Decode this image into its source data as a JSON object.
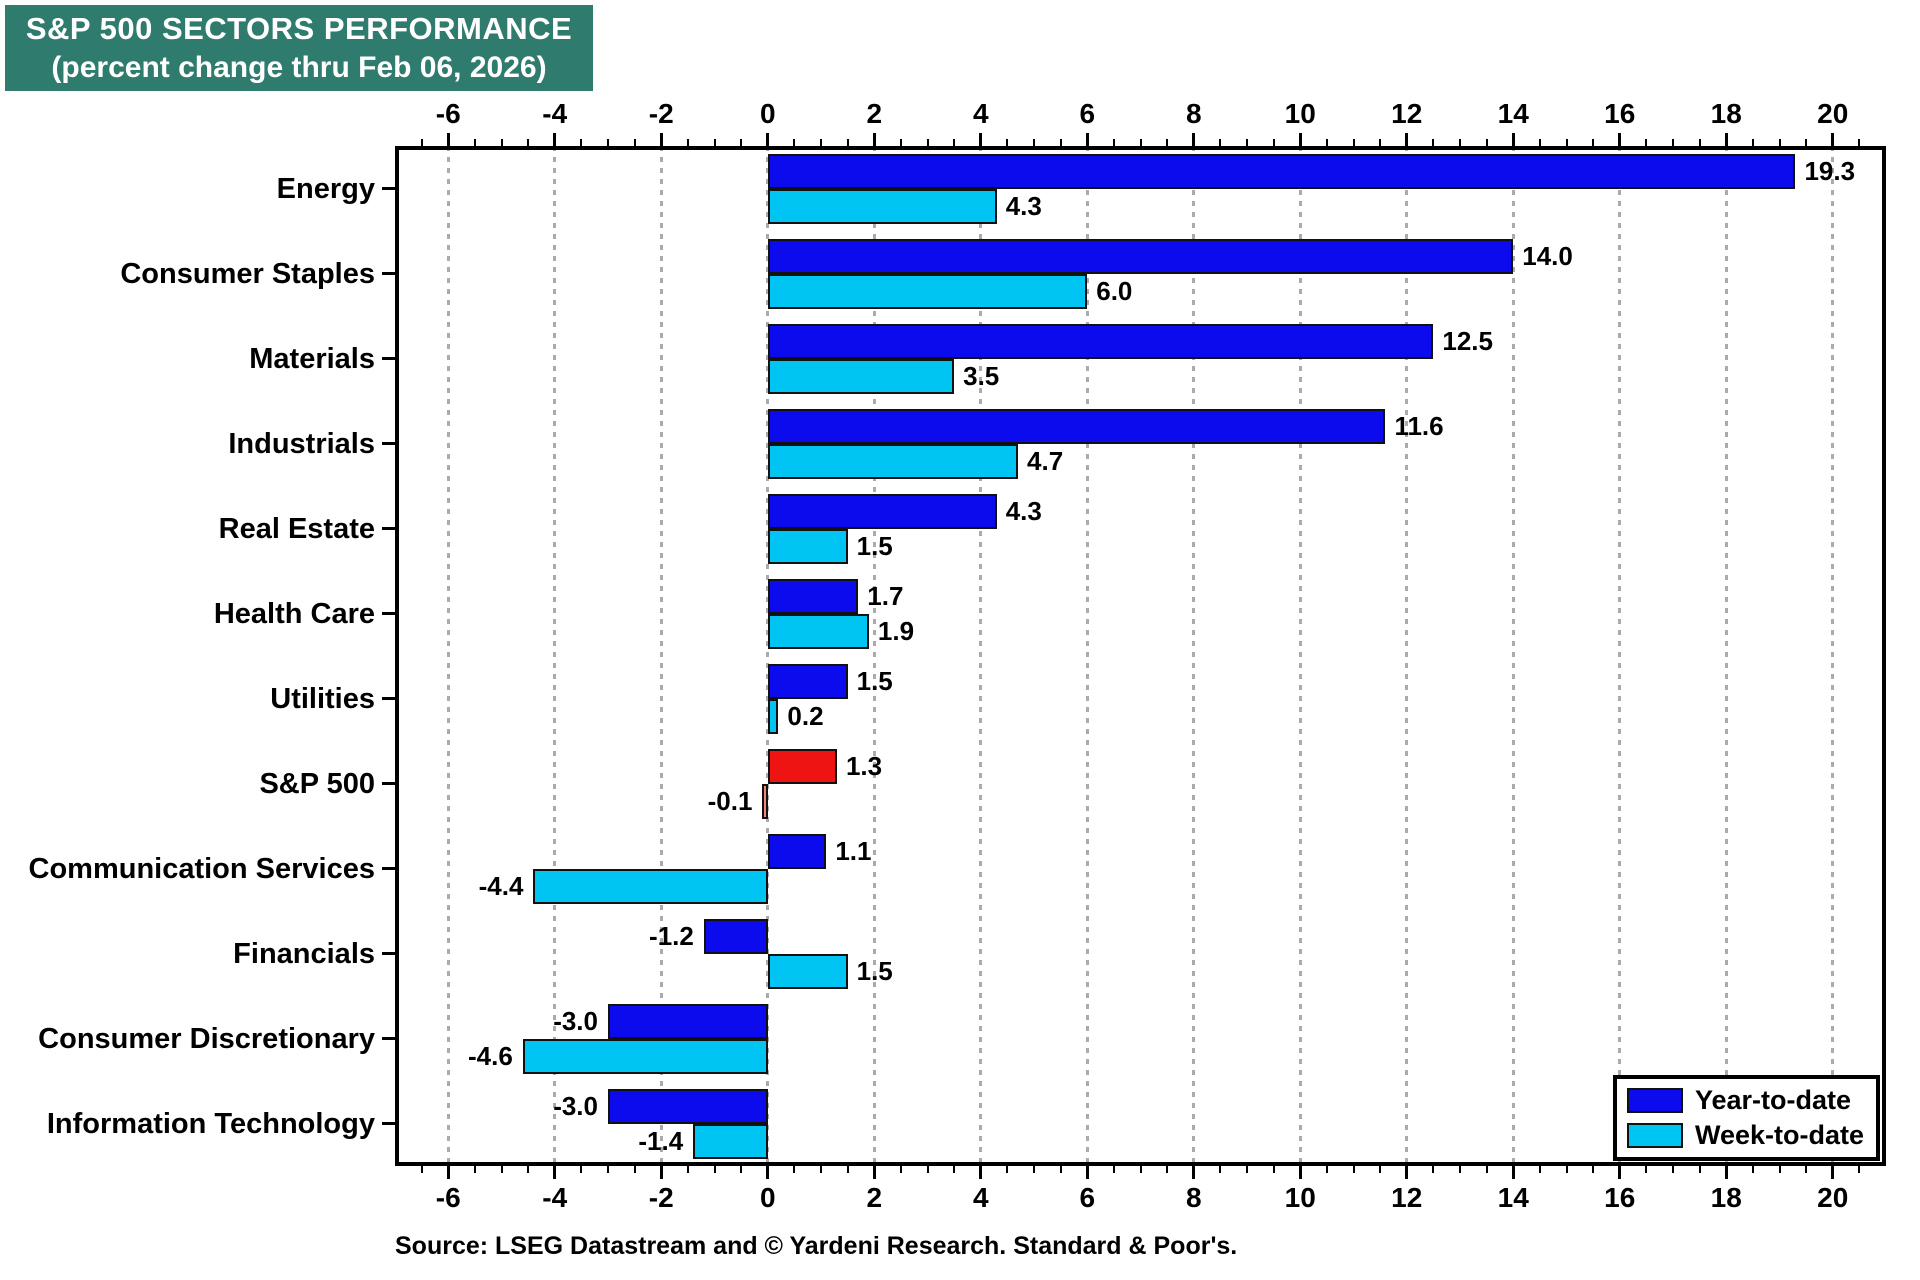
{
  "title": {
    "line1": "S&P 500 SECTORS PERFORMANCE",
    "line2": "(percent change thru Feb 06, 2026)",
    "bg_color": "#2f7b6d",
    "text_color": "#ffffff"
  },
  "source": "Source: LSEG Datastream and © Yardeni Research. Standard & Poor's.",
  "legend": {
    "items": [
      {
        "label": "Year-to-date",
        "color": "#0b0bee"
      },
      {
        "label": "Week-to-date",
        "color": "#00c5f2"
      }
    ]
  },
  "chart_data": {
    "type": "bar",
    "orientation": "horizontal",
    "title": "S&P 500 SECTORS PERFORMANCE (percent change thru Feb 06, 2026)",
    "categories": [
      "Energy",
      "Consumer Staples",
      "Materials",
      "Industrials",
      "Real Estate",
      "Health Care",
      "Utilities",
      "S&P 500",
      "Communication Services",
      "Financials",
      "Consumer Discretionary",
      "Information Technology"
    ],
    "series": [
      {
        "name": "Year-to-date",
        "color": "#0b0bee",
        "values": [
          19.3,
          14.0,
          12.5,
          11.6,
          4.3,
          1.7,
          1.5,
          1.3,
          1.1,
          -1.2,
          -3.0,
          -3.0
        ]
      },
      {
        "name": "Week-to-date",
        "color": "#00c5f2",
        "values": [
          4.3,
          6.0,
          3.5,
          4.7,
          1.5,
          1.9,
          0.2,
          -0.1,
          -4.4,
          1.5,
          -4.6,
          -1.4
        ]
      }
    ],
    "highlight": {
      "category": "S&P 500",
      "colors": [
        "#ee1414",
        "#f5837e"
      ]
    },
    "xlim": [
      -7,
      21
    ],
    "xticks": [
      -6,
      -4,
      -2,
      0,
      2,
      4,
      6,
      8,
      10,
      12,
      14,
      16,
      18,
      20
    ],
    "minor_tick_step": 0.5,
    "grid": "dotted-vertical",
    "value_label_decimals": 1,
    "legend_position": "bottom-right"
  }
}
